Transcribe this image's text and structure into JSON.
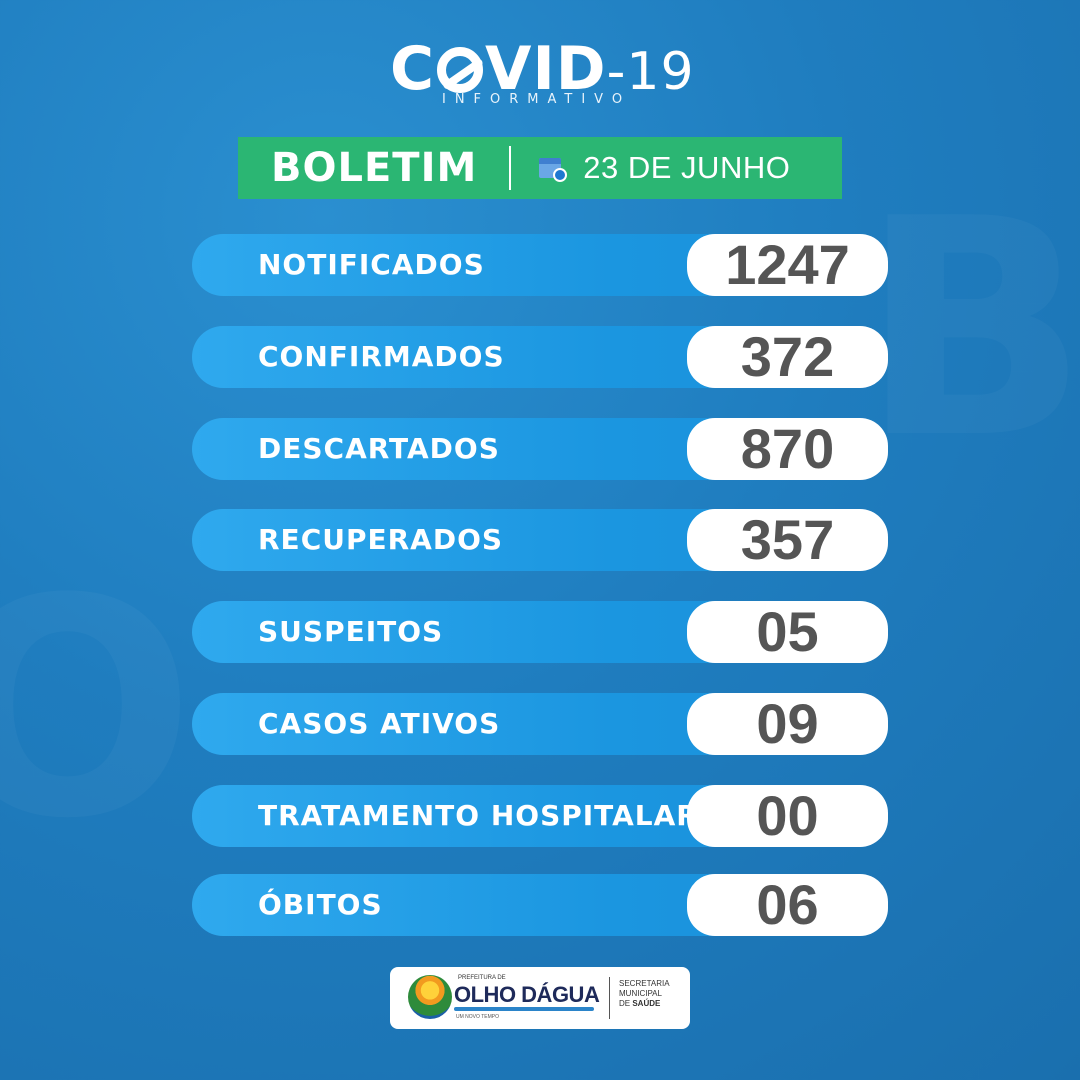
{
  "header": {
    "logo_prefix": "C",
    "logo_suffix": "VID",
    "logo_number": "-19",
    "logo_subtitle": "INFORMATIVO"
  },
  "boletim": {
    "label": "BOLETIM",
    "date": "23 DE JUNHO",
    "icon": "calendar-clock-icon",
    "color": "#2bb673"
  },
  "stats": [
    {
      "label": "NOTIFICADOS",
      "value": "1247"
    },
    {
      "label": "CONFIRMADOS",
      "value": "372"
    },
    {
      "label": "DESCARTADOS",
      "value": "870"
    },
    {
      "label": "RECUPERADOS",
      "value": "357"
    },
    {
      "label": "SUSPEITOS",
      "value": "05"
    },
    {
      "label": "CASOS ATIVOS",
      "value": "09"
    },
    {
      "label": "TRATAMENTO HOSPITALAR",
      "value": "00"
    },
    {
      "label": "ÓBITOS",
      "value": "06"
    }
  ],
  "footer": {
    "prefeitura": "PREFEITURA DE",
    "city": "OLHO DÁGUA",
    "tagline": "UM NOVO TEMPO",
    "secretaria_line1": "SECRETARIA",
    "secretaria_line2": "MUNICIPAL",
    "secretaria_line3_prefix": "DE ",
    "secretaria_line3_bold": "SAÚDE"
  },
  "colors": {
    "background": "#1f7dbf",
    "row_pill": "#1b96e0",
    "value_text": "#555555"
  }
}
